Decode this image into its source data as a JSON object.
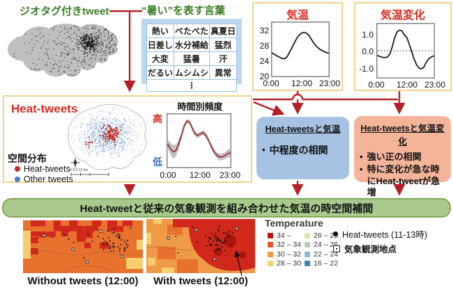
{
  "colors": {
    "arrow_red": "#b42025",
    "title_green": "#3a7d23",
    "title_red": "#d92b21",
    "heat_dot": "#c5281c",
    "other_dot": "#4a7fc1"
  },
  "top": {
    "geotagged_label": "ジオタグ付きtweet",
    "hot_words_title": "“暑い”を表す言葉"
  },
  "hot_words": {
    "rows": [
      [
        "熱い",
        "べたべた",
        "真夏日"
      ],
      [
        "日差し",
        "水分補給",
        "猛烈"
      ],
      [
        "大変",
        "猛暑",
        "汗"
      ],
      [
        "だるい",
        "ムシムシ",
        "異常"
      ]
    ],
    "ellipsis": "⋮"
  },
  "charts": {
    "temperature": {
      "type": "line",
      "title": "気温",
      "values": [
        26.0,
        25.6,
        25.2,
        24.9,
        24.6,
        24.5,
        25.0,
        26.2,
        27.4,
        28.7,
        29.9,
        30.8,
        31.3,
        31.5,
        31.3,
        30.7,
        29.7,
        28.7,
        27.9,
        27.3,
        26.8,
        26.5,
        26.2,
        26.0
      ],
      "ylim": [
        20,
        34
      ],
      "yticklabels": [
        "32",
        "28",
        "24",
        "20"
      ],
      "xticklabels": [
        "0:00",
        "12:00",
        "23:00"
      ],
      "line_color": "#1a1a1a"
    },
    "temp_change": {
      "type": "line",
      "title": "気温変化",
      "values": [
        -0.3,
        -0.35,
        -0.4,
        -0.42,
        -0.38,
        -0.2,
        0.25,
        0.8,
        1.15,
        1.25,
        1.2,
        0.95,
        0.8,
        0.4,
        -0.05,
        -0.5,
        -0.85,
        -1.05,
        -1.1,
        -1.0,
        -0.7,
        -0.5,
        -0.38,
        -0.32
      ],
      "ylim": [
        -1.6,
        1.6
      ],
      "zero_line": true,
      "yticklabels": [
        "1.0",
        "0.0",
        "-1.0"
      ],
      "xticklabels": [
        "0:00",
        "12:00",
        "23:00"
      ],
      "line_color": "#1a1a1a"
    },
    "hourly_freq": {
      "type": "line",
      "title": "時間別頻度",
      "values": [
        0.45,
        0.36,
        0.3,
        0.33,
        0.46,
        0.63,
        0.82,
        0.92,
        0.9,
        0.78,
        0.67,
        0.63,
        0.66,
        0.69,
        0.64,
        0.54,
        0.42,
        0.31,
        0.24,
        0.2,
        0.2,
        0.22,
        0.26,
        0.28
      ],
      "band": [
        0.1,
        0.12,
        0.14,
        0.12,
        0.09,
        0.07,
        0.05,
        0.04,
        0.04,
        0.05,
        0.05,
        0.05,
        0.05,
        0.05,
        0.05,
        0.05,
        0.05,
        0.06,
        0.06,
        0.07,
        0.07,
        0.07,
        0.08,
        0.09
      ],
      "ylim": [
        0,
        1.05
      ],
      "xticklabels": [
        "0:00",
        "12:00",
        "23:00"
      ],
      "line_color": "#9e2d2d"
    }
  },
  "heat_tweets": {
    "title": "Heat-tweets",
    "spatial_label": "空間分布",
    "legend": [
      {
        "label": "Heat-tweets",
        "color": "#c5281c"
      },
      {
        "label": "Other tweets",
        "color": "#4a7fc1"
      }
    ],
    "high_label": "高",
    "low_label": "低",
    "scale_text": "0 3 6 12 km"
  },
  "analysis": {
    "temp": {
      "title": "Heat-tweetsと気温",
      "bullets": [
        "中程度の相関"
      ]
    },
    "change": {
      "title": "Heat-tweetsと気温変化",
      "bullets": [
        "強い正の相関",
        "特に変化が急な時にHeat-tweetが急増"
      ]
    }
  },
  "banner": "Heat-tweetと従来の気象観測を組み合わせた気温の時空間補間",
  "maps": {
    "without_label": "Without tweets (12:00)",
    "with_label": "With tweets (12:00)"
  },
  "temp_legend": {
    "title": "Temperature",
    "col1": [
      {
        "range": "34 –",
        "color": "#b01c12"
      },
      {
        "range": "32 – 34",
        "color": "#e2582a"
      },
      {
        "range": "30 – 32",
        "color": "#f59a40"
      },
      {
        "range": "28 – 30",
        "color": "#f6d16c"
      }
    ],
    "col2": [
      {
        "range": "26 – 28",
        "color": "#dfe6a7"
      },
      {
        "range": "24 – 26",
        "color": "#b9cdb4"
      },
      {
        "range": "22 – 24",
        "color": "#8fb9cf"
      },
      {
        "range": "16 – 22",
        "color": "#3d87ae"
      }
    ]
  },
  "point_legend": {
    "tweets": "Heat-tweets (11-13時)",
    "stations": "気象観測地点"
  }
}
